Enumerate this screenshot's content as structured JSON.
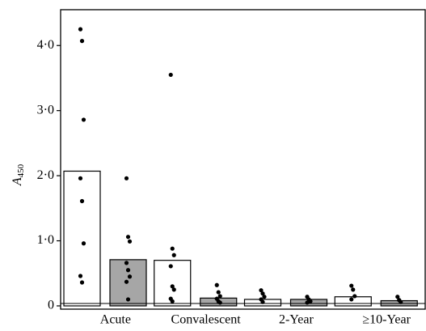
{
  "chart_data": {
    "type": "bar",
    "y_label": "A",
    "y_label_sub": "450",
    "categories": [
      "Acute",
      "Convalescent",
      "2-Year",
      "≥10-Year"
    ],
    "series": [
      {
        "color": "#ffffff",
        "values": [
          2.07,
          0.7,
          0.1,
          0.14
        ],
        "points": [
          [
            4.25,
            4.07,
            2.86,
            1.96,
            1.61,
            0.96,
            0.46,
            0.36
          ],
          [
            3.55,
            0.88,
            0.78,
            0.61,
            0.3,
            0.25,
            0.11,
            0.07
          ],
          [
            0.24,
            0.19,
            0.14,
            0.1,
            0.06
          ],
          [
            0.31,
            0.25,
            0.15,
            0.1
          ]
        ]
      },
      {
        "color": "#a6a6a6",
        "values": [
          0.71,
          0.12,
          0.1,
          0.08
        ],
        "points": [
          [
            1.96,
            1.06,
            0.99,
            0.66,
            0.55,
            0.45,
            0.37,
            0.1
          ],
          [
            0.32,
            0.21,
            0.15,
            0.11,
            0.07,
            0.05
          ],
          [
            0.14,
            0.1,
            0.07,
            0.05
          ],
          [
            0.14,
            0.09,
            0.06
          ]
        ]
      }
    ],
    "ylim": [
      -0.05,
      4.55
    ],
    "yticks": [
      0,
      {
        "value": 1,
        "label": "1·0"
      },
      {
        "value": 2,
        "label": "2·0"
      },
      {
        "value": 3,
        "label": "3·0"
      },
      {
        "value": 4,
        "label": "4·0"
      }
    ]
  }
}
